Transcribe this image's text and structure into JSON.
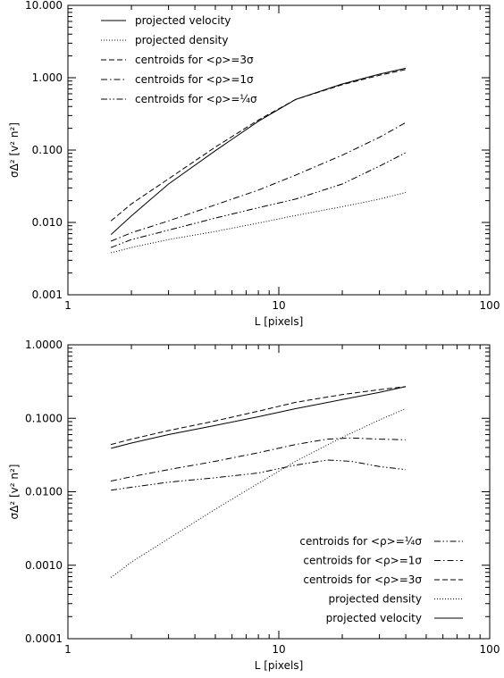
{
  "chart_data": [
    {
      "type": "line",
      "xlabel": "L [pixels]",
      "ylabel": "σΔ² [v² n²]",
      "xscale": "log",
      "yscale": "log",
      "xlim": [
        1,
        100
      ],
      "ylim": [
        0.001,
        10
      ],
      "x_ticks": [
        "1",
        "10",
        "100"
      ],
      "y_ticks": [
        "0.001",
        "0.010",
        "0.100",
        "1.000",
        "10.000"
      ],
      "legend_position": "top-left",
      "series": [
        {
          "name": "projected velocity",
          "style": "solid",
          "x": [
            1.6,
            2,
            3,
            5,
            8,
            12,
            20,
            30,
            40
          ],
          "y": [
            0.0068,
            0.0123,
            0.034,
            0.098,
            0.25,
            0.5,
            0.82,
            1.12,
            1.35
          ]
        },
        {
          "name": "projected density",
          "style": "dotted",
          "x": [
            1.6,
            2,
            3,
            5,
            8,
            12,
            20,
            30,
            40
          ],
          "y": [
            0.0038,
            0.0045,
            0.0058,
            0.0075,
            0.0098,
            0.0125,
            0.0165,
            0.021,
            0.026
          ]
        },
        {
          "name": "centroids for <ρ>=3σ",
          "style": "dashed",
          "x": [
            1.6,
            2,
            3,
            5,
            8,
            12,
            20,
            30,
            40
          ],
          "y": [
            0.0105,
            0.018,
            0.04,
            0.11,
            0.26,
            0.5,
            0.8,
            1.08,
            1.3
          ]
        },
        {
          "name": "centroids for <ρ>=1σ",
          "style": "dashdot",
          "x": [
            1.6,
            2,
            3,
            5,
            8,
            12,
            20,
            30,
            40
          ],
          "y": [
            0.0055,
            0.0072,
            0.0105,
            0.0175,
            0.028,
            0.045,
            0.085,
            0.15,
            0.24
          ]
        },
        {
          "name": "centroids for <ρ>=¼σ",
          "style": "dashdotdot",
          "x": [
            1.6,
            2,
            3,
            5,
            8,
            12,
            20,
            30,
            40
          ],
          "y": [
            0.0045,
            0.0058,
            0.0078,
            0.0115,
            0.016,
            0.021,
            0.034,
            0.06,
            0.092
          ]
        }
      ]
    },
    {
      "type": "line",
      "xlabel": "L [pixels]",
      "ylabel": "σΔ² [v² n²]",
      "xscale": "log",
      "yscale": "log",
      "xlim": [
        1,
        100
      ],
      "ylim": [
        0.0001,
        1
      ],
      "x_ticks": [
        "1",
        "10",
        "100"
      ],
      "y_ticks": [
        "0.0001",
        "0.0010",
        "0.0100",
        "0.1000",
        "1.0000"
      ],
      "legend_position": "bottom-right",
      "series": [
        {
          "name": "centroids for <ρ>=¼σ",
          "style": "dashdotdot",
          "x": [
            1.6,
            2,
            3,
            5,
            8,
            12,
            17,
            22,
            30,
            40
          ],
          "y": [
            0.0105,
            0.0115,
            0.0135,
            0.0155,
            0.018,
            0.023,
            0.027,
            0.026,
            0.022,
            0.02
          ]
        },
        {
          "name": "centroids for <ρ>=1σ",
          "style": "dashdot",
          "x": [
            1.6,
            2,
            3,
            5,
            8,
            12,
            17,
            22,
            30,
            40
          ],
          "y": [
            0.014,
            0.016,
            0.02,
            0.026,
            0.034,
            0.044,
            0.052,
            0.054,
            0.052,
            0.051
          ]
        },
        {
          "name": "centroids for <ρ>=3σ",
          "style": "dashed",
          "x": [
            1.6,
            2,
            3,
            5,
            8,
            12,
            20,
            30,
            40
          ],
          "y": [
            0.044,
            0.052,
            0.068,
            0.092,
            0.125,
            0.165,
            0.21,
            0.245,
            0.27
          ]
        },
        {
          "name": "projected density",
          "style": "dotted",
          "x": [
            1.6,
            2,
            3,
            5,
            8,
            12,
            20,
            30,
            40
          ],
          "y": [
            0.00068,
            0.0011,
            0.0023,
            0.0058,
            0.013,
            0.026,
            0.055,
            0.095,
            0.135
          ]
        },
        {
          "name": "projected velocity",
          "style": "solid",
          "x": [
            1.6,
            2,
            3,
            5,
            8,
            12,
            20,
            30,
            40
          ],
          "y": [
            0.039,
            0.046,
            0.06,
            0.08,
            0.105,
            0.135,
            0.18,
            0.225,
            0.27
          ]
        }
      ]
    }
  ]
}
